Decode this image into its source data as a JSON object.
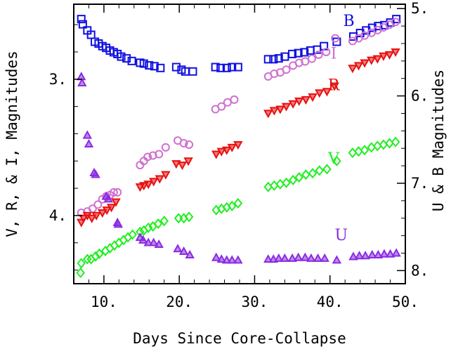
{
  "chart_data": {
    "type": "scatter",
    "xlabel": "Days Since Core-Collapse",
    "ylabel_left": "V, R, & I, Magnitudes",
    "ylabel_right": "U & B Magnitudes",
    "xlim": [
      6,
      50
    ],
    "ylim_left": [
      4.5,
      2.45
    ],
    "ylim_right": [
      8.15,
      4.95
    ],
    "x_ticks": [
      {
        "value": 10,
        "label": "10."
      },
      {
        "value": 20,
        "label": "20."
      },
      {
        "value": 30,
        "label": "30."
      },
      {
        "value": 40,
        "label": "40."
      },
      {
        "value": 50,
        "label": "50."
      }
    ],
    "y_ticks_left": [
      {
        "value": 3,
        "label": "3."
      },
      {
        "value": 4,
        "label": "4."
      }
    ],
    "y_ticks_right": [
      {
        "value": 5,
        "label": "5."
      },
      {
        "value": 6,
        "label": "6."
      },
      {
        "value": 7,
        "label": "7."
      },
      {
        "value": 8,
        "label": "8."
      }
    ],
    "grid": false,
    "legend": "inline-labels",
    "series": [
      {
        "name": "B",
        "axis": "right",
        "marker": "square",
        "color": "#1010e0",
        "label_pos": {
          "x": 42.5,
          "y": 5.2
        },
        "x": [
          7.0,
          7.2,
          7.8,
          8.3,
          8.8,
          9.3,
          9.8,
          10.3,
          10.8,
          11.3,
          11.8,
          12.3,
          13.0,
          13.7,
          14.8,
          15.3,
          16.0,
          16.7,
          17.5,
          19.6,
          20.3,
          20.8,
          21.8,
          24.8,
          25.5,
          26.3,
          27.0,
          27.8,
          31.8,
          32.5,
          33.2,
          34.0,
          35.0,
          35.8,
          36.6,
          37.4,
          38.3,
          39.2,
          40.9,
          43.1,
          44.0,
          44.8,
          45.6,
          46.4,
          47.2,
          48.0,
          48.8
        ],
        "y": [
          5.12,
          5.18,
          5.25,
          5.3,
          5.38,
          5.4,
          5.43,
          5.45,
          5.48,
          5.5,
          5.52,
          5.55,
          5.57,
          5.6,
          5.62,
          5.63,
          5.65,
          5.66,
          5.68,
          5.67,
          5.7,
          5.72,
          5.72,
          5.67,
          5.68,
          5.68,
          5.67,
          5.67,
          5.58,
          5.58,
          5.57,
          5.55,
          5.52,
          5.51,
          5.5,
          5.48,
          5.47,
          5.43,
          5.38,
          5.32,
          5.28,
          5.25,
          5.22,
          5.2,
          5.19,
          5.16,
          5.12
        ]
      },
      {
        "name": "I",
        "axis": "left",
        "marker": "circle",
        "color": "#d070d0",
        "label_pos": {
          "x": 40.5,
          "y": 2.85
        },
        "x": [
          7.0,
          7.8,
          8.5,
          9.2,
          9.8,
          10.3,
          10.8,
          11.3,
          11.8,
          14.8,
          15.3,
          15.8,
          16.5,
          17.3,
          18.2,
          19.8,
          20.6,
          21.3,
          24.8,
          25.6,
          26.4,
          27.3,
          31.8,
          32.6,
          33.4,
          34.2,
          35.1,
          35.9,
          36.7,
          37.6,
          38.5,
          39.5,
          40.7,
          43.0,
          43.8,
          44.6,
          45.5,
          46.3,
          47.1,
          47.9,
          48.7
        ],
        "y": [
          3.98,
          3.97,
          3.95,
          3.92,
          3.88,
          3.86,
          3.85,
          3.83,
          3.83,
          3.63,
          3.6,
          3.57,
          3.56,
          3.55,
          3.5,
          3.45,
          3.47,
          3.48,
          3.22,
          3.2,
          3.17,
          3.15,
          2.98,
          2.96,
          2.95,
          2.93,
          2.9,
          2.88,
          2.87,
          2.85,
          2.82,
          2.8,
          2.7,
          2.72,
          2.7,
          2.68,
          2.66,
          2.64,
          2.62,
          2.6,
          2.58
        ]
      },
      {
        "name": "R",
        "axis": "left",
        "marker": "triangle-down",
        "color": "#e81010",
        "label_pos": {
          "x": 40.5,
          "y": 3.08
        },
        "x": [
          7.0,
          7.3,
          7.8,
          8.4,
          9.0,
          9.8,
          10.4,
          11.0,
          11.6,
          14.8,
          15.3,
          15.9,
          16.6,
          17.4,
          18.2,
          19.6,
          20.4,
          21.2,
          24.9,
          25.6,
          26.3,
          27.0,
          27.8,
          31.8,
          32.6,
          33.4,
          34.2,
          35.1,
          35.9,
          36.8,
          37.7,
          38.6,
          39.6,
          40.6,
          43.0,
          43.8,
          44.6,
          45.5,
          46.3,
          47.1,
          47.9,
          48.7
        ],
        "y": [
          4.05,
          4.02,
          4.0,
          4.02,
          4.0,
          3.98,
          3.96,
          3.94,
          3.9,
          3.79,
          3.78,
          3.77,
          3.75,
          3.73,
          3.7,
          3.62,
          3.63,
          3.6,
          3.55,
          3.53,
          3.52,
          3.5,
          3.48,
          3.25,
          3.23,
          3.22,
          3.2,
          3.18,
          3.16,
          3.15,
          3.13,
          3.1,
          3.09,
          3.05,
          2.92,
          2.9,
          2.88,
          2.86,
          2.85,
          2.83,
          2.82,
          2.8
        ]
      },
      {
        "name": "V",
        "axis": "left",
        "marker": "diamond",
        "color": "#22ee22",
        "label_pos": {
          "x": 40.5,
          "y": 3.62
        },
        "x": [
          6.9,
          7.0,
          7.8,
          8.3,
          8.9,
          9.4,
          10.2,
          10.8,
          11.4,
          12.0,
          12.6,
          13.2,
          13.8,
          14.8,
          15.3,
          15.9,
          16.5,
          17.2,
          18.0,
          19.9,
          20.6,
          21.3,
          24.9,
          25.6,
          26.3,
          27.0,
          27.8,
          31.8,
          32.6,
          33.4,
          34.2,
          35.1,
          35.9,
          36.8,
          37.7,
          38.6,
          39.6,
          40.9,
          43.0,
          43.8,
          44.6,
          45.5,
          46.3,
          47.1,
          47.9,
          48.7
        ],
        "y": [
          4.42,
          4.35,
          4.32,
          4.32,
          4.3,
          4.28,
          4.26,
          4.24,
          4.22,
          4.2,
          4.18,
          4.16,
          4.14,
          4.12,
          4.11,
          4.09,
          4.08,
          4.06,
          4.04,
          4.02,
          4.02,
          4.01,
          3.96,
          3.95,
          3.94,
          3.93,
          3.91,
          3.79,
          3.78,
          3.77,
          3.76,
          3.74,
          3.72,
          3.7,
          3.69,
          3.67,
          3.66,
          3.6,
          3.54,
          3.53,
          3.52,
          3.5,
          3.49,
          3.48,
          3.47,
          3.46
        ]
      },
      {
        "name": "U",
        "axis": "right",
        "marker": "triangle-up",
        "color": "#8a2be2",
        "label_pos": {
          "x": 41.5,
          "y": 7.65
        },
        "x": [
          7.0,
          7.1,
          7.8,
          8.0,
          8.7,
          8.9,
          10.3,
          10.6,
          11.8,
          11.9,
          14.8,
          15.2,
          15.9,
          16.6,
          17.3,
          19.8,
          20.6,
          21.4,
          24.9,
          25.6,
          26.3,
          27.0,
          27.8,
          31.8,
          32.5,
          33.2,
          34.0,
          35.0,
          35.8,
          36.7,
          37.5,
          38.4,
          39.3,
          40.9,
          43.1,
          43.9,
          44.7,
          45.6,
          46.4,
          47.2,
          48.0,
          48.8
        ],
        "y": [
          5.78,
          5.85,
          6.45,
          6.55,
          6.88,
          6.9,
          7.15,
          7.18,
          7.45,
          7.47,
          7.62,
          7.65,
          7.68,
          7.68,
          7.7,
          7.75,
          7.78,
          7.82,
          7.85,
          7.87,
          7.88,
          7.88,
          7.88,
          7.87,
          7.87,
          7.86,
          7.86,
          7.86,
          7.85,
          7.85,
          7.86,
          7.86,
          7.86,
          7.88,
          7.84,
          7.83,
          7.83,
          7.82,
          7.82,
          7.81,
          7.81,
          7.8
        ]
      }
    ]
  }
}
